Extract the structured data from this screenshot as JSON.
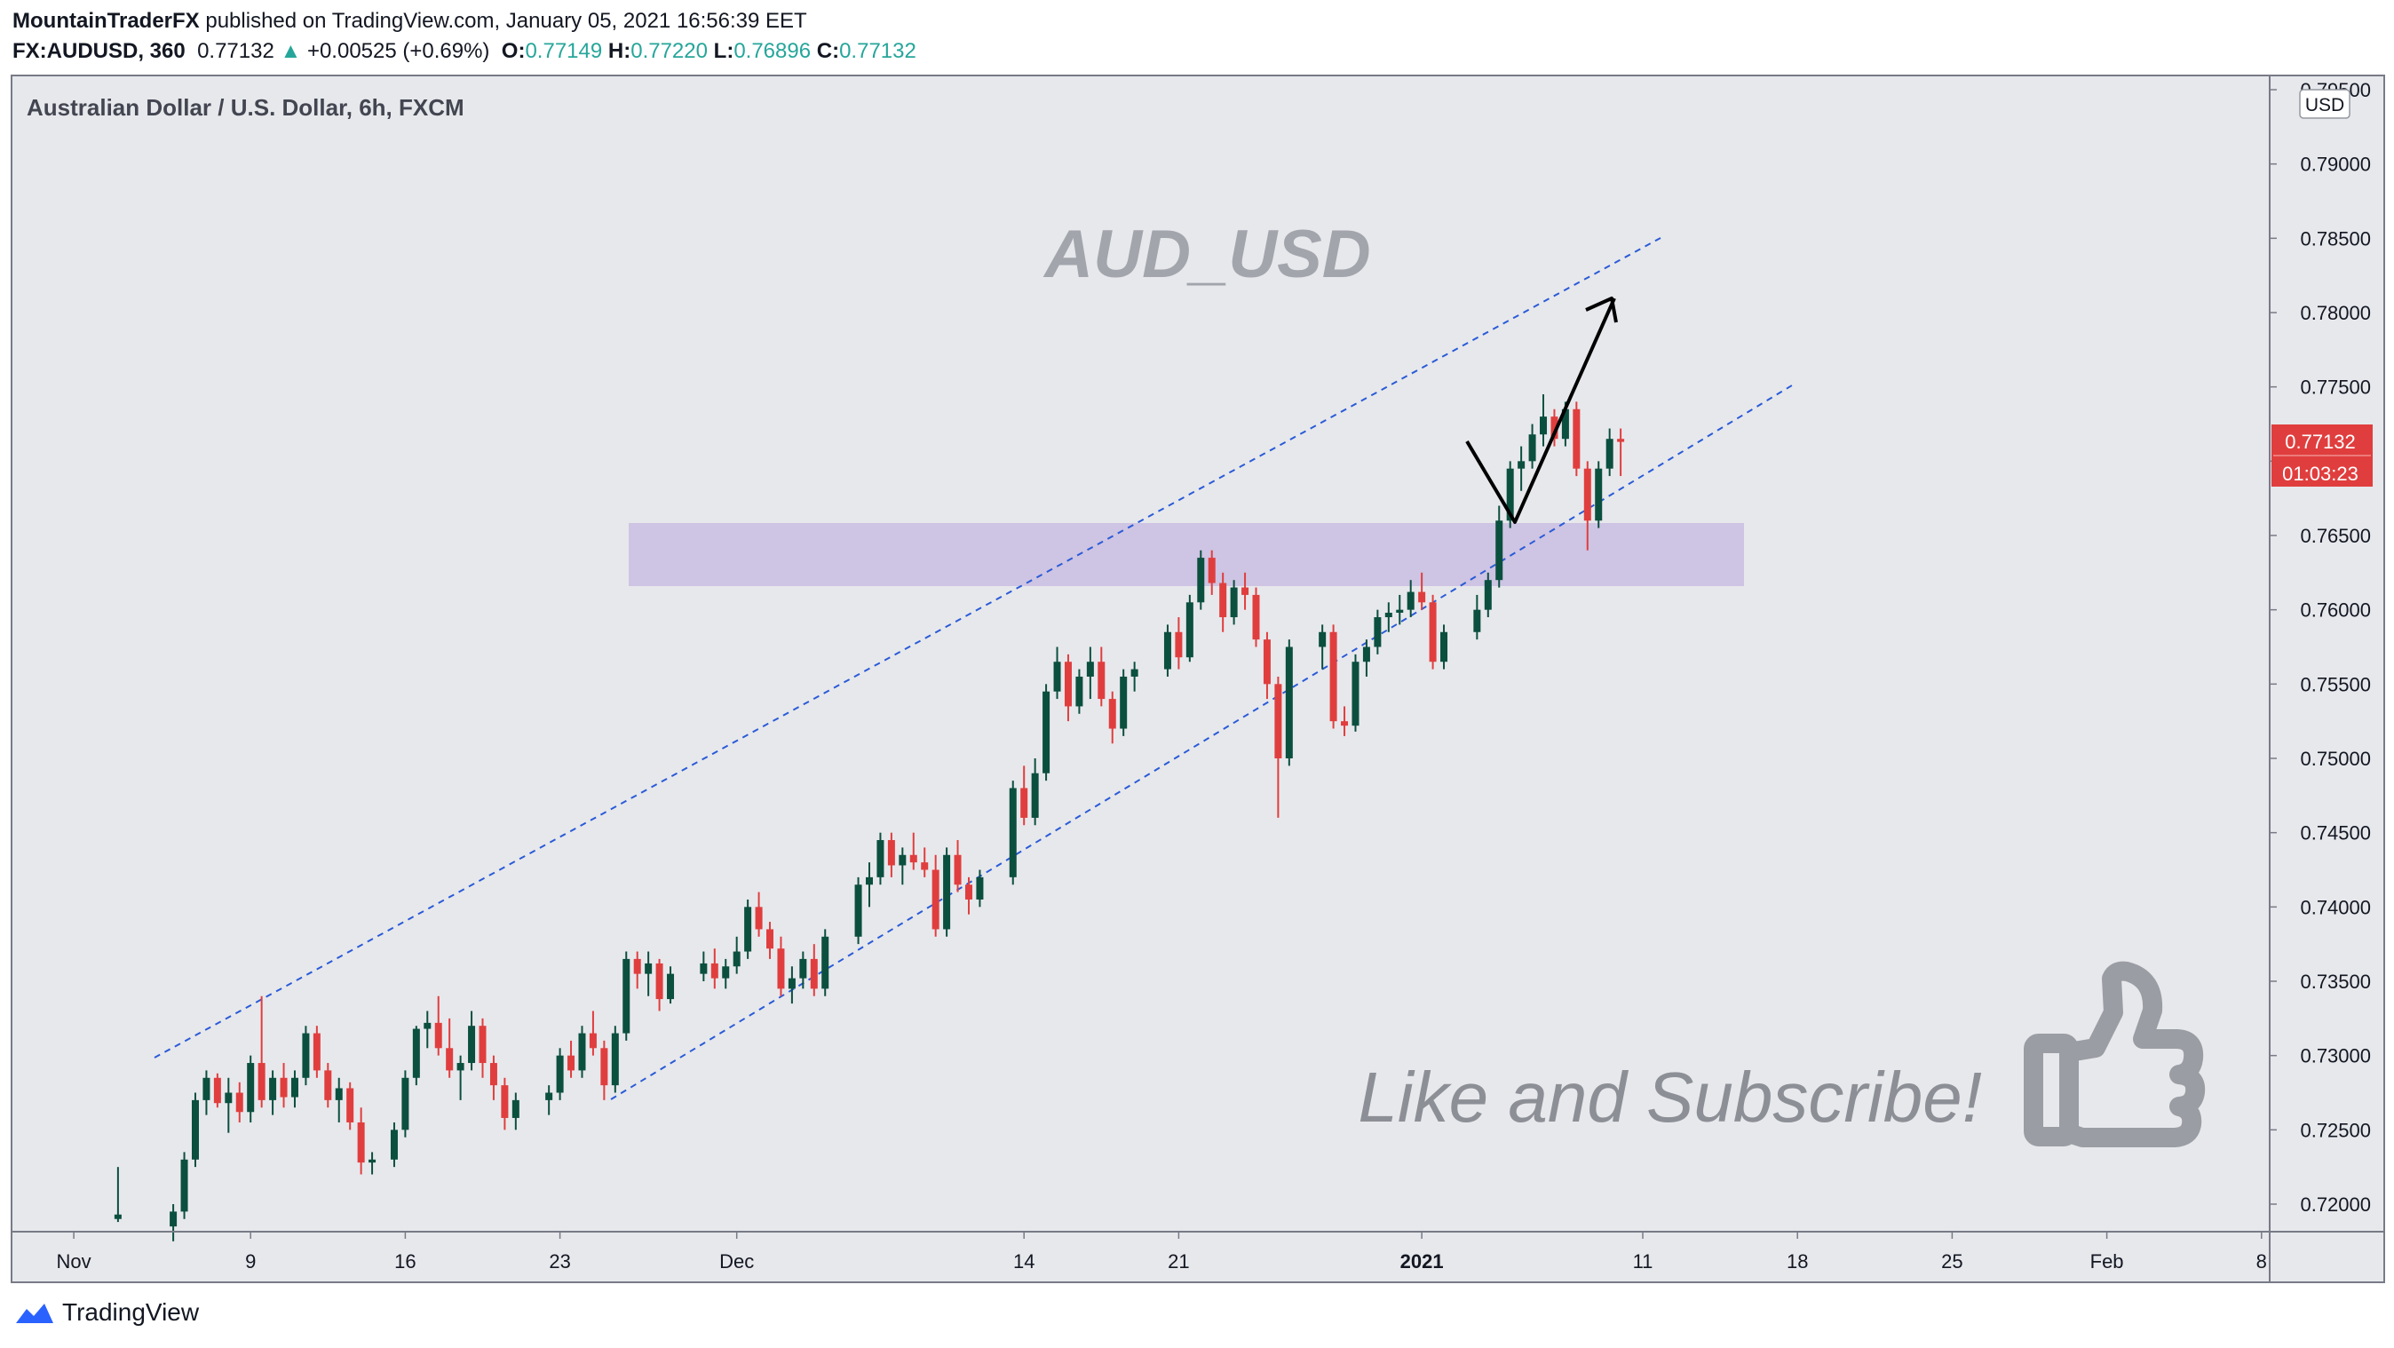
{
  "header": {
    "author": "MountainTraderFX",
    "published_text": "published on TradingView.com, January 05, 2021 16:56:39 EET",
    "symbol": "FX:AUDUSD, 360",
    "last": "0.77132",
    "change_arrow": "▲",
    "change": "+0.00525 (+0.69%)",
    "open_label": "O:",
    "open": "0.77149",
    "high_label": "H:",
    "high": "0.77220",
    "low_label": "L:",
    "low": "0.76896",
    "close_label": "C:",
    "close": "0.77132"
  },
  "chart": {
    "symbol_title": "Australian Dollar / U.S. Dollar, 6h, FXCM",
    "watermark": "AUD_USD",
    "cta": "Like and Subscribe!",
    "currency_badge": "USD",
    "last_price_label": "0.77132",
    "countdown_label": "01:03:23",
    "thumb_icon": "thumbs-up-icon"
  },
  "footer": {
    "brand": "TradingView",
    "logo_icon": "tradingview-logo-icon"
  },
  "colors": {
    "up": "#26a69a",
    "up_body": "#0b4f3f",
    "down": "#e03e3e",
    "channel": "#2a5bd7",
    "zone": "#c6b8e0",
    "background": "#e7e8ec",
    "price_tag": "#e03e3e"
  },
  "chart_data": {
    "type": "candlestick",
    "x_axis_labels": [
      "Nov",
      "9",
      "16",
      "23",
      "Dec",
      "14",
      "21",
      "2021",
      "11",
      "18",
      "25",
      "Feb",
      "8"
    ],
    "y_axis_labels": [
      "0.79500",
      "0.79000",
      "0.78500",
      "0.78000",
      "0.77500",
      "0.77000",
      "0.76500",
      "0.76000",
      "0.75500",
      "0.75000",
      "0.74500",
      "0.74000",
      "0.73500",
      "0.73000",
      "0.72500",
      "0.72000"
    ],
    "ylim": [
      0.717,
      0.796
    ],
    "x_domain": [
      "2020-10-27",
      "2021-02-10"
    ],
    "last_price": 0.77132,
    "ohlc_6h_approx": [
      {
        "t": "2020-11-03T00:00",
        "o": 0.719,
        "h": 0.7225,
        "l": 0.7188,
        "c": 0.7193
      },
      {
        "t": "2020-11-05T12:00",
        "o": 0.7185,
        "h": 0.72,
        "l": 0.7175,
        "c": 0.7195
      },
      {
        "t": "2020-11-06T00:00",
        "o": 0.7195,
        "h": 0.7235,
        "l": 0.719,
        "c": 0.723
      },
      {
        "t": "2020-11-06T12:00",
        "o": 0.723,
        "h": 0.7275,
        "l": 0.7225,
        "c": 0.727
      },
      {
        "t": "2020-11-07T00:00",
        "o": 0.727,
        "h": 0.729,
        "l": 0.726,
        "c": 0.7285
      },
      {
        "t": "2020-11-07T12:00",
        "o": 0.7285,
        "h": 0.7288,
        "l": 0.7265,
        "c": 0.7268
      },
      {
        "t": "2020-11-08T00:00",
        "o": 0.7268,
        "h": 0.7285,
        "l": 0.7248,
        "c": 0.7275
      },
      {
        "t": "2020-11-08T12:00",
        "o": 0.7275,
        "h": 0.7282,
        "l": 0.7255,
        "c": 0.7262
      },
      {
        "t": "2020-11-09T00:00",
        "o": 0.7262,
        "h": 0.73,
        "l": 0.7255,
        "c": 0.7295
      },
      {
        "t": "2020-11-09T12:00",
        "o": 0.7295,
        "h": 0.734,
        "l": 0.7265,
        "c": 0.727
      },
      {
        "t": "2020-11-10T00:00",
        "o": 0.727,
        "h": 0.729,
        "l": 0.726,
        "c": 0.7285
      },
      {
        "t": "2020-11-10T12:00",
        "o": 0.7285,
        "h": 0.7295,
        "l": 0.7265,
        "c": 0.7272
      },
      {
        "t": "2020-11-11T00:00",
        "o": 0.7272,
        "h": 0.729,
        "l": 0.7265,
        "c": 0.7285
      },
      {
        "t": "2020-11-11T12:00",
        "o": 0.7285,
        "h": 0.732,
        "l": 0.728,
        "c": 0.7315
      },
      {
        "t": "2020-11-12T00:00",
        "o": 0.7315,
        "h": 0.732,
        "l": 0.7285,
        "c": 0.729
      },
      {
        "t": "2020-11-12T12:00",
        "o": 0.729,
        "h": 0.7295,
        "l": 0.7265,
        "c": 0.727
      },
      {
        "t": "2020-11-13T00:00",
        "o": 0.727,
        "h": 0.7285,
        "l": 0.7255,
        "c": 0.7278
      },
      {
        "t": "2020-11-13T12:00",
        "o": 0.7278,
        "h": 0.7282,
        "l": 0.725,
        "c": 0.7255
      },
      {
        "t": "2020-11-14T00:00",
        "o": 0.7255,
        "h": 0.7265,
        "l": 0.722,
        "c": 0.7228
      },
      {
        "t": "2020-11-14T12:00",
        "o": 0.7228,
        "h": 0.7235,
        "l": 0.722,
        "c": 0.723
      },
      {
        "t": "2020-11-15T12:00",
        "o": 0.723,
        "h": 0.7255,
        "l": 0.7225,
        "c": 0.725
      },
      {
        "t": "2020-11-16T00:00",
        "o": 0.725,
        "h": 0.729,
        "l": 0.7245,
        "c": 0.7285
      },
      {
        "t": "2020-11-16T12:00",
        "o": 0.7285,
        "h": 0.732,
        "l": 0.728,
        "c": 0.7318
      },
      {
        "t": "2020-11-17T00:00",
        "o": 0.7318,
        "h": 0.733,
        "l": 0.7305,
        "c": 0.7322
      },
      {
        "t": "2020-11-17T12:00",
        "o": 0.7322,
        "h": 0.734,
        "l": 0.73,
        "c": 0.7305
      },
      {
        "t": "2020-11-18T00:00",
        "o": 0.7305,
        "h": 0.7325,
        "l": 0.7285,
        "c": 0.729
      },
      {
        "t": "2020-11-18T12:00",
        "o": 0.729,
        "h": 0.73,
        "l": 0.727,
        "c": 0.7295
      },
      {
        "t": "2020-11-19T00:00",
        "o": 0.7295,
        "h": 0.733,
        "l": 0.729,
        "c": 0.732
      },
      {
        "t": "2020-11-19T12:00",
        "o": 0.732,
        "h": 0.7325,
        "l": 0.7285,
        "c": 0.7295
      },
      {
        "t": "2020-11-20T00:00",
        "o": 0.7295,
        "h": 0.73,
        "l": 0.727,
        "c": 0.728
      },
      {
        "t": "2020-11-20T12:00",
        "o": 0.728,
        "h": 0.7285,
        "l": 0.725,
        "c": 0.7258
      },
      {
        "t": "2020-11-21T00:00",
        "o": 0.7258,
        "h": 0.7275,
        "l": 0.725,
        "c": 0.727
      },
      {
        "t": "2020-11-22T12:00",
        "o": 0.727,
        "h": 0.728,
        "l": 0.726,
        "c": 0.7275
      },
      {
        "t": "2020-11-23T00:00",
        "o": 0.7275,
        "h": 0.7305,
        "l": 0.727,
        "c": 0.73
      },
      {
        "t": "2020-11-23T12:00",
        "o": 0.73,
        "h": 0.731,
        "l": 0.7285,
        "c": 0.729
      },
      {
        "t": "2020-11-24T00:00",
        "o": 0.729,
        "h": 0.732,
        "l": 0.7285,
        "c": 0.7315
      },
      {
        "t": "2020-11-24T12:00",
        "o": 0.7315,
        "h": 0.733,
        "l": 0.73,
        "c": 0.7305
      },
      {
        "t": "2020-11-25T00:00",
        "o": 0.7305,
        "h": 0.731,
        "l": 0.727,
        "c": 0.728
      },
      {
        "t": "2020-11-25T12:00",
        "o": 0.728,
        "h": 0.732,
        "l": 0.7275,
        "c": 0.7315
      },
      {
        "t": "2020-11-26T00:00",
        "o": 0.7315,
        "h": 0.737,
        "l": 0.731,
        "c": 0.7365
      },
      {
        "t": "2020-11-26T12:00",
        "o": 0.7365,
        "h": 0.737,
        "l": 0.7345,
        "c": 0.7355
      },
      {
        "t": "2020-11-27T00:00",
        "o": 0.7355,
        "h": 0.737,
        "l": 0.734,
        "c": 0.7362
      },
      {
        "t": "2020-11-27T12:00",
        "o": 0.7362,
        "h": 0.7365,
        "l": 0.733,
        "c": 0.7338
      },
      {
        "t": "2020-11-28T00:00",
        "o": 0.7338,
        "h": 0.736,
        "l": 0.7335,
        "c": 0.7355
      },
      {
        "t": "2020-11-29T12:00",
        "o": 0.7355,
        "h": 0.737,
        "l": 0.735,
        "c": 0.7362
      },
      {
        "t": "2020-11-30T00:00",
        "o": 0.7362,
        "h": 0.7372,
        "l": 0.7345,
        "c": 0.7352
      },
      {
        "t": "2020-11-30T12:00",
        "o": 0.7352,
        "h": 0.7365,
        "l": 0.7345,
        "c": 0.736
      },
      {
        "t": "2020-12-01T00:00",
        "o": 0.736,
        "h": 0.738,
        "l": 0.7355,
        "c": 0.737
      },
      {
        "t": "2020-12-01T12:00",
        "o": 0.737,
        "h": 0.7405,
        "l": 0.7365,
        "c": 0.74
      },
      {
        "t": "2020-12-02T00:00",
        "o": 0.74,
        "h": 0.741,
        "l": 0.738,
        "c": 0.7385
      },
      {
        "t": "2020-12-02T12:00",
        "o": 0.7385,
        "h": 0.739,
        "l": 0.7365,
        "c": 0.7372
      },
      {
        "t": "2020-12-03T00:00",
        "o": 0.7372,
        "h": 0.738,
        "l": 0.734,
        "c": 0.7345
      },
      {
        "t": "2020-12-03T12:00",
        "o": 0.7345,
        "h": 0.736,
        "l": 0.7335,
        "c": 0.7352
      },
      {
        "t": "2020-12-04T00:00",
        "o": 0.7352,
        "h": 0.737,
        "l": 0.7345,
        "c": 0.7365
      },
      {
        "t": "2020-12-04T12:00",
        "o": 0.7365,
        "h": 0.7375,
        "l": 0.734,
        "c": 0.7345
      },
      {
        "t": "2020-12-05T00:00",
        "o": 0.7345,
        "h": 0.7385,
        "l": 0.734,
        "c": 0.738
      },
      {
        "t": "2020-12-06T12:00",
        "o": 0.738,
        "h": 0.742,
        "l": 0.7375,
        "c": 0.7415
      },
      {
        "t": "2020-12-07T00:00",
        "o": 0.7415,
        "h": 0.743,
        "l": 0.74,
        "c": 0.742
      },
      {
        "t": "2020-12-07T12:00",
        "o": 0.742,
        "h": 0.745,
        "l": 0.7415,
        "c": 0.7445
      },
      {
        "t": "2020-12-08T00:00",
        "o": 0.7445,
        "h": 0.745,
        "l": 0.742,
        "c": 0.7428
      },
      {
        "t": "2020-12-08T12:00",
        "o": 0.7428,
        "h": 0.744,
        "l": 0.7415,
        "c": 0.7435
      },
      {
        "t": "2020-12-09T00:00",
        "o": 0.7435,
        "h": 0.745,
        "l": 0.7425,
        "c": 0.743
      },
      {
        "t": "2020-12-09T12:00",
        "o": 0.743,
        "h": 0.744,
        "l": 0.742,
        "c": 0.7425
      },
      {
        "t": "2020-12-10T00:00",
        "o": 0.7425,
        "h": 0.7435,
        "l": 0.738,
        "c": 0.7385
      },
      {
        "t": "2020-12-10T12:00",
        "o": 0.7385,
        "h": 0.744,
        "l": 0.738,
        "c": 0.7435
      },
      {
        "t": "2020-12-11T00:00",
        "o": 0.7435,
        "h": 0.7445,
        "l": 0.741,
        "c": 0.7415
      },
      {
        "t": "2020-12-11T12:00",
        "o": 0.7415,
        "h": 0.742,
        "l": 0.7395,
        "c": 0.7405
      },
      {
        "t": "2020-12-12T00:00",
        "o": 0.7405,
        "h": 0.7425,
        "l": 0.74,
        "c": 0.742
      },
      {
        "t": "2020-12-13T12:00",
        "o": 0.742,
        "h": 0.7485,
        "l": 0.7415,
        "c": 0.748
      },
      {
        "t": "2020-12-14T00:00",
        "o": 0.748,
        "h": 0.7495,
        "l": 0.7455,
        "c": 0.746
      },
      {
        "t": "2020-12-14T12:00",
        "o": 0.746,
        "h": 0.75,
        "l": 0.7455,
        "c": 0.749
      },
      {
        "t": "2020-12-15T00:00",
        "o": 0.749,
        "h": 0.755,
        "l": 0.7485,
        "c": 0.7545
      },
      {
        "t": "2020-12-15T12:00",
        "o": 0.7545,
        "h": 0.7575,
        "l": 0.754,
        "c": 0.7565
      },
      {
        "t": "2020-12-16T00:00",
        "o": 0.7565,
        "h": 0.757,
        "l": 0.7525,
        "c": 0.7535
      },
      {
        "t": "2020-12-16T12:00",
        "o": 0.7535,
        "h": 0.756,
        "l": 0.753,
        "c": 0.7555
      },
      {
        "t": "2020-12-17T00:00",
        "o": 0.7555,
        "h": 0.7575,
        "l": 0.754,
        "c": 0.7565
      },
      {
        "t": "2020-12-17T12:00",
        "o": 0.7565,
        "h": 0.7575,
        "l": 0.7535,
        "c": 0.754
      },
      {
        "t": "2020-12-18T00:00",
        "o": 0.754,
        "h": 0.7545,
        "l": 0.751,
        "c": 0.752
      },
      {
        "t": "2020-12-18T12:00",
        "o": 0.752,
        "h": 0.756,
        "l": 0.7515,
        "c": 0.7555
      },
      {
        "t": "2020-12-19T00:00",
        "o": 0.7555,
        "h": 0.7565,
        "l": 0.7545,
        "c": 0.756
      },
      {
        "t": "2020-12-20T12:00",
        "o": 0.756,
        "h": 0.759,
        "l": 0.7555,
        "c": 0.7585
      },
      {
        "t": "2020-12-21T00:00",
        "o": 0.7585,
        "h": 0.7595,
        "l": 0.756,
        "c": 0.7568
      },
      {
        "t": "2020-12-21T12:00",
        "o": 0.7568,
        "h": 0.761,
        "l": 0.7565,
        "c": 0.7605
      },
      {
        "t": "2020-12-22T00:00",
        "o": 0.7605,
        "h": 0.764,
        "l": 0.76,
        "c": 0.7635
      },
      {
        "t": "2020-12-22T12:00",
        "o": 0.7635,
        "h": 0.764,
        "l": 0.761,
        "c": 0.7618
      },
      {
        "t": "2020-12-23T00:00",
        "o": 0.7618,
        "h": 0.7625,
        "l": 0.7585,
        "c": 0.7595
      },
      {
        "t": "2020-12-23T12:00",
        "o": 0.7595,
        "h": 0.762,
        "l": 0.759,
        "c": 0.7615
      },
      {
        "t": "2020-12-24T00:00",
        "o": 0.7615,
        "h": 0.7625,
        "l": 0.76,
        "c": 0.761
      },
      {
        "t": "2020-12-24T12:00",
        "o": 0.761,
        "h": 0.7615,
        "l": 0.7575,
        "c": 0.758
      },
      {
        "t": "2020-12-25T00:00",
        "o": 0.758,
        "h": 0.7585,
        "l": 0.754,
        "c": 0.755
      },
      {
        "t": "2020-12-25T12:00",
        "o": 0.755,
        "h": 0.7555,
        "l": 0.746,
        "c": 0.75
      },
      {
        "t": "2020-12-26T00:00",
        "o": 0.75,
        "h": 0.758,
        "l": 0.7495,
        "c": 0.7575
      },
      {
        "t": "2020-12-27T12:00",
        "o": 0.7575,
        "h": 0.759,
        "l": 0.756,
        "c": 0.7585
      },
      {
        "t": "2020-12-28T00:00",
        "o": 0.7585,
        "h": 0.759,
        "l": 0.752,
        "c": 0.7525
      },
      {
        "t": "2020-12-28T12:00",
        "o": 0.7525,
        "h": 0.7535,
        "l": 0.7515,
        "c": 0.7522
      },
      {
        "t": "2020-12-29T00:00",
        "o": 0.7522,
        "h": 0.757,
        "l": 0.7518,
        "c": 0.7565
      },
      {
        "t": "2020-12-29T12:00",
        "o": 0.7565,
        "h": 0.758,
        "l": 0.7555,
        "c": 0.7575
      },
      {
        "t": "2020-12-30T00:00",
        "o": 0.7575,
        "h": 0.76,
        "l": 0.757,
        "c": 0.7595
      },
      {
        "t": "2020-12-30T12:00",
        "o": 0.7595,
        "h": 0.7605,
        "l": 0.7585,
        "c": 0.7598
      },
      {
        "t": "2020-12-31T00:00",
        "o": 0.7598,
        "h": 0.761,
        "l": 0.759,
        "c": 0.76
      },
      {
        "t": "2020-12-31T12:00",
        "o": 0.76,
        "h": 0.762,
        "l": 0.7595,
        "c": 0.7612
      },
      {
        "t": "2021-01-01T00:00",
        "o": 0.7612,
        "h": 0.7625,
        "l": 0.76,
        "c": 0.7605
      },
      {
        "t": "2021-01-01T12:00",
        "o": 0.7605,
        "h": 0.761,
        "l": 0.756,
        "c": 0.7565
      },
      {
        "t": "2021-01-02T00:00",
        "o": 0.7565,
        "h": 0.759,
        "l": 0.756,
        "c": 0.7585
      },
      {
        "t": "2021-01-03T12:00",
        "o": 0.7585,
        "h": 0.761,
        "l": 0.758,
        "c": 0.76
      },
      {
        "t": "2021-01-04T00:00",
        "o": 0.76,
        "h": 0.7625,
        "l": 0.7595,
        "c": 0.762
      },
      {
        "t": "2021-01-04T12:00",
        "o": 0.762,
        "h": 0.767,
        "l": 0.7615,
        "c": 0.766
      },
      {
        "t": "2021-01-05T00:00",
        "o": 0.766,
        "h": 0.77,
        "l": 0.7655,
        "c": 0.7695
      },
      {
        "t": "2021-01-05T12:00",
        "o": 0.7695,
        "h": 0.771,
        "l": 0.768,
        "c": 0.77
      },
      {
        "t": "2021-01-06T00:00",
        "o": 0.77,
        "h": 0.7725,
        "l": 0.7695,
        "c": 0.7718
      },
      {
        "t": "2021-01-06T12:00",
        "o": 0.7718,
        "h": 0.7745,
        "l": 0.771,
        "c": 0.773
      },
      {
        "t": "2021-01-07T00:00",
        "o": 0.773,
        "h": 0.7735,
        "l": 0.771,
        "c": 0.7715
      },
      {
        "t": "2021-01-07T12:00",
        "o": 0.7715,
        "h": 0.774,
        "l": 0.771,
        "c": 0.7735
      },
      {
        "t": "2021-01-08T00:00",
        "o": 0.7735,
        "h": 0.774,
        "l": 0.769,
        "c": 0.7695
      },
      {
        "t": "2021-01-08T12:00",
        "o": 0.7695,
        "h": 0.77,
        "l": 0.764,
        "c": 0.766
      },
      {
        "t": "2021-01-09T00:00",
        "o": 0.766,
        "h": 0.77,
        "l": 0.7655,
        "c": 0.7695
      },
      {
        "t": "2021-01-09T12:00",
        "o": 0.7695,
        "h": 0.7722,
        "l": 0.769,
        "c": 0.7715
      },
      {
        "t": "2021-01-10T00:00",
        "o": 0.7715,
        "h": 0.7722,
        "l": 0.769,
        "c": 0.7713
      }
    ]
  }
}
